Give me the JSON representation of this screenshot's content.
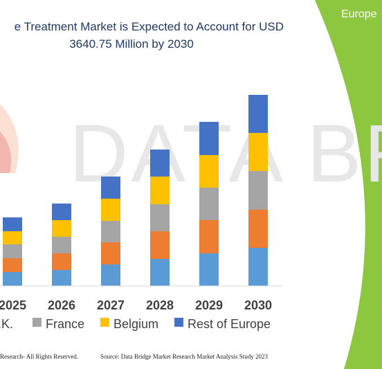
{
  "title_line1": "e Treatment Market is Expected to Account for USD",
  "title_line2": "3640.75 Million by 2030",
  "region_tag": "Europe",
  "footer_left": "Research- All Rights Reserved.",
  "footer_right": "Source: Data Bridge Market Research Market Analysis Study 2023",
  "watermark": "DATA BRIDGE",
  "colors": {
    "green_panel": "#8dc63f",
    "title": "#1f3864"
  },
  "chart_data": {
    "type": "bar",
    "stacked": true,
    "categories": [
      "2025",
      "2026",
      "2027",
      "2028",
      "2029",
      "2030"
    ],
    "series": [
      {
        "name": "",
        "color": "#5b9bd5",
        "values": [
          20,
          23,
          31,
          39,
          47,
          55
        ]
      },
      {
        "name": "",
        "color": "#ed7d31",
        "values": [
          20,
          24,
          32,
          40,
          48,
          55
        ]
      },
      {
        "name": "France",
        "color": "#a5a5a5",
        "values": [
          20,
          24,
          31,
          39,
          47,
          56
        ]
      },
      {
        "name": "Belgium",
        "color": "#ffc000",
        "values": [
          19,
          24,
          32,
          40,
          47,
          55
        ]
      },
      {
        "name": "Rest of Europe",
        "color": "#4472c4",
        "values": [
          20,
          24,
          32,
          39,
          48,
          55
        ]
      }
    ],
    "legend_partial_first": ".K.",
    "legend_placement": "bottom",
    "ylim": [
      0,
      280
    ],
    "grid": false
  }
}
